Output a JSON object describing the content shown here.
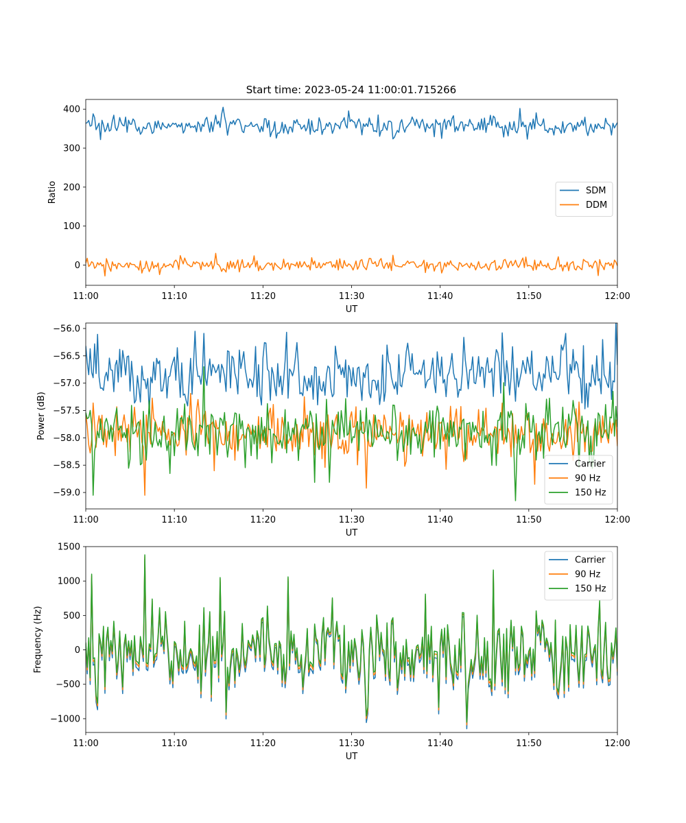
{
  "figure": {
    "title": "Start time: 2023-05-24 11:00:01.715266"
  },
  "chart_data": [
    {
      "type": "line",
      "title": "Start time: 2023-05-24 11:00:01.715266",
      "xlabel": "UT",
      "ylabel": "Ratio",
      "xlim": [
        "11:00",
        "12:00"
      ],
      "ylim": [
        -52,
        425
      ],
      "xticks": [
        "11:00",
        "11:10",
        "11:20",
        "11:30",
        "11:40",
        "11:50",
        "12:00"
      ],
      "yticks": [
        0,
        100,
        200,
        300,
        400
      ],
      "legend_loc": "center-right",
      "n_points": 360,
      "series": [
        {
          "name": "SDM",
          "color": "#1f77b4",
          "mean": 357,
          "noise": 13,
          "spikes": [
            {
              "t": "11:15:30",
              "y": 405
            },
            {
              "t": "11:49:00",
              "y": 402
            },
            {
              "t": "11:00:50",
              "y": 388
            },
            {
              "t": "11:01:40",
              "y": 322
            }
          ]
        },
        {
          "name": "DDM",
          "color": "#ff7f0e",
          "mean": 0,
          "noise": 9,
          "spikes": [
            {
              "t": "11:14:40",
              "y": 30
            },
            {
              "t": "11:02:10",
              "y": -28
            },
            {
              "t": "11:57:50",
              "y": -27
            },
            {
              "t": "11:34:40",
              "y": 25
            }
          ]
        }
      ]
    },
    {
      "type": "line",
      "title": "",
      "xlabel": "UT",
      "ylabel": "Power (dB)",
      "xlim": [
        "11:00",
        "12:00"
      ],
      "ylim": [
        -59.3,
        -55.9
      ],
      "xticks": [
        "11:00",
        "11:10",
        "11:20",
        "11:30",
        "11:40",
        "11:50",
        "12:00"
      ],
      "yticks": [
        -59.0,
        -58.5,
        -58.0,
        -57.5,
        -57.0,
        -56.5,
        -56.0
      ],
      "legend_loc": "lower-right",
      "n_points": 360,
      "series": [
        {
          "name": "Carrier",
          "color": "#1f77b4",
          "mean": -56.85,
          "noise": 0.28,
          "spikes": [
            {
              "t": "11:12:20",
              "y": -56.05
            },
            {
              "t": "11:22:40",
              "y": -56.07
            },
            {
              "t": "11:47:00",
              "y": -56.08
            },
            {
              "t": "11:54:10",
              "y": -56.09
            }
          ]
        },
        {
          "name": "90 Hz",
          "color": "#ff7f0e",
          "mean": -57.92,
          "noise": 0.25,
          "spikes": [
            {
              "t": "11:06:40",
              "y": -59.05
            },
            {
              "t": "11:31:40",
              "y": -58.92
            },
            {
              "t": "11:50:40",
              "y": -58.85
            }
          ]
        },
        {
          "name": "150 Hz",
          "color": "#2ca02c",
          "mean": -57.88,
          "noise": 0.3,
          "spikes": [
            {
              "t": "11:00:50",
              "y": -59.05
            },
            {
              "t": "11:48:30",
              "y": -59.15
            },
            {
              "t": "11:13:20",
              "y": -56.7
            },
            {
              "t": "11:59:30",
              "y": -57.15
            }
          ]
        }
      ]
    },
    {
      "type": "line",
      "title": "",
      "xlabel": "UT",
      "ylabel": "Frequency (Hz)",
      "xlim": [
        "11:00",
        "12:00"
      ],
      "ylim": [
        -1200,
        1500
      ],
      "xticks": [
        "11:00",
        "11:10",
        "11:20",
        "11:30",
        "11:40",
        "11:50",
        "12:00"
      ],
      "yticks": [
        -1000,
        -500,
        0,
        500,
        1000,
        1500
      ],
      "legend_loc": "upper-right",
      "n_points": 360,
      "series": [
        {
          "name": "Carrier",
          "color": "#1f77b4",
          "offset": -60
        },
        {
          "name": "90 Hz",
          "color": "#ff7f0e",
          "offset": -25
        },
        {
          "name": "150 Hz",
          "color": "#2ca02c",
          "offset": 0
        }
      ],
      "spikes": [
        {
          "t": "11:06:40",
          "y": 1380
        },
        {
          "t": "11:00:40",
          "y": 1100
        },
        {
          "t": "11:46:00",
          "y": 1160
        },
        {
          "t": "11:43:00",
          "y": -1050
        },
        {
          "t": "11:31:40",
          "y": -960
        },
        {
          "t": "11:22:50",
          "y": 1060
        },
        {
          "t": "11:15:10",
          "y": 1050
        }
      ],
      "amplitude": 330
    }
  ]
}
